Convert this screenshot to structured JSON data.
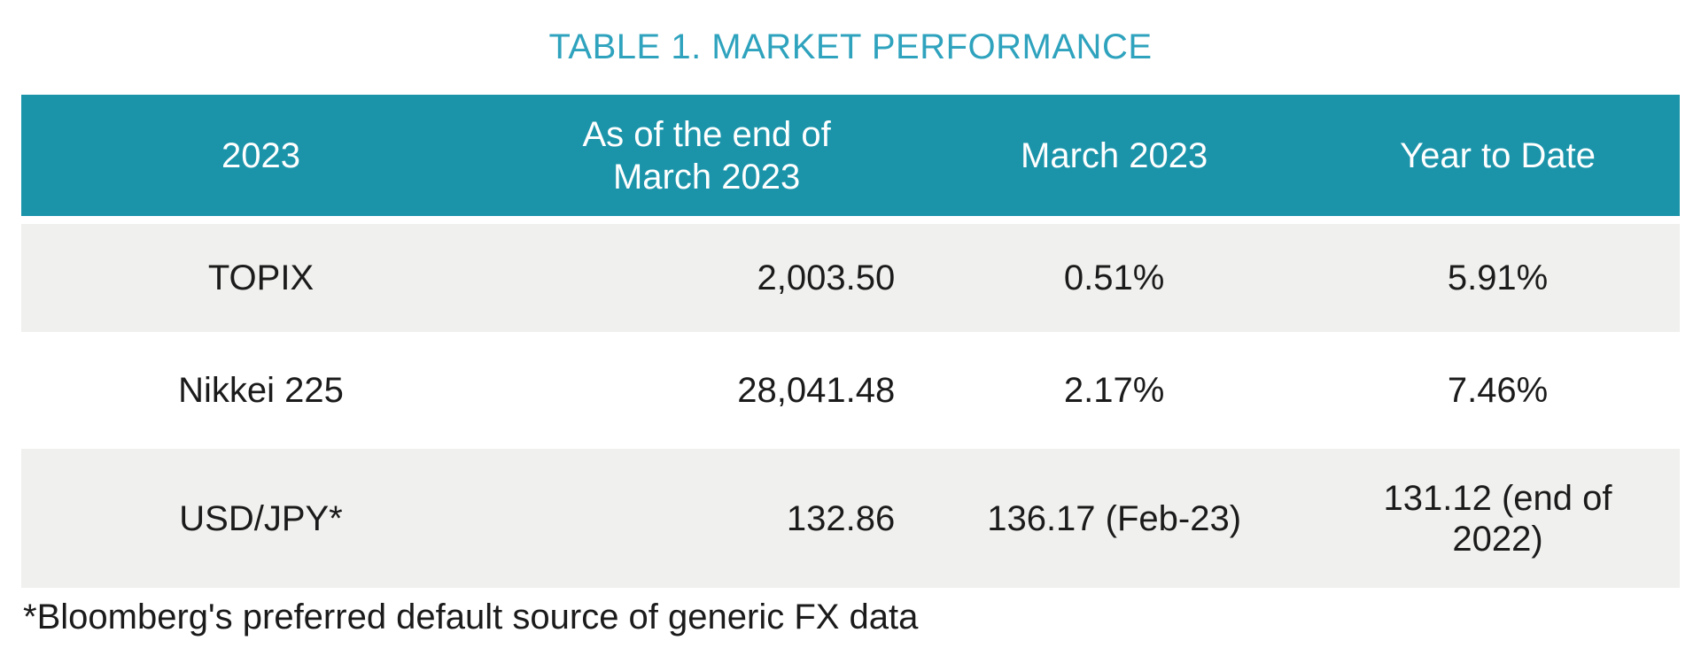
{
  "title": "TABLE 1. MARKET PERFORMANCE",
  "table": {
    "headers": {
      "period": "2023",
      "end_of_march": "As of the end of\nMarch 2023",
      "march_2023": "March 2023",
      "year_to_date": "Year to Date"
    },
    "rows": [
      {
        "label": "TOPIX",
        "end_of_march": "2,003.50",
        "march_2023": "0.51%",
        "year_to_date": "5.91%"
      },
      {
        "label": "Nikkei 225",
        "end_of_march": "28,041.48",
        "march_2023": "2.17%",
        "year_to_date": "7.46%"
      },
      {
        "label": "USD/JPY*",
        "end_of_march": "132.86",
        "march_2023": "136.17 (Feb-23)",
        "year_to_date": "131.12 (end of\n2022)"
      }
    ]
  },
  "footnote": "*Bloomberg's preferred default source of generic FX data",
  "colors": {
    "header_bg": "#1B94AA",
    "title": "#2FA3BE",
    "row_alt_bg": "#F0F0EE",
    "body_text": "#1B1B1B",
    "header_text": "#FFFFFF"
  }
}
